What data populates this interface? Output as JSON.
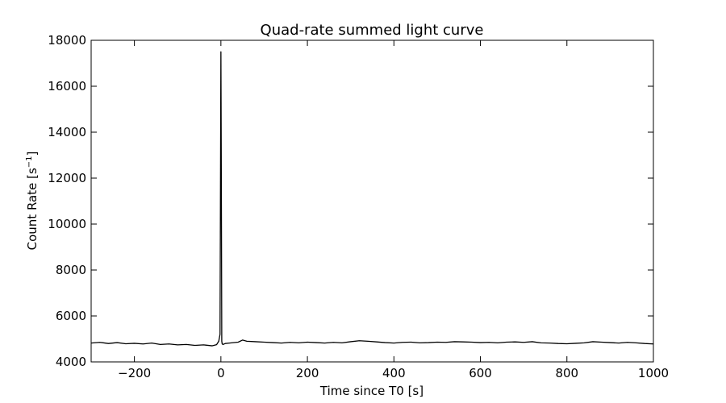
{
  "chart_data": {
    "type": "line",
    "title": "Quad-rate summed light curve",
    "xlabel": "Time since T0 [s]",
    "ylabel_main": "Count Rate [s",
    "ylabel_sup": "−1",
    "ylabel_end": "]",
    "xlim": [
      -300,
      1000
    ],
    "ylim": [
      4000,
      18000
    ],
    "x_ticks": [
      -200,
      0,
      200,
      400,
      600,
      800,
      1000
    ],
    "x_tick_labels": [
      "−200",
      "0",
      "200",
      "400",
      "600",
      "800",
      "1000"
    ],
    "y_ticks": [
      4000,
      6000,
      8000,
      10000,
      12000,
      14000,
      16000,
      18000
    ],
    "y_tick_labels": [
      "4000",
      "6000",
      "8000",
      "10000",
      "12000",
      "14000",
      "16000",
      "18000"
    ],
    "grid": false,
    "line_color": "#000000",
    "series": [
      {
        "x": [
          -300,
          -280,
          -260,
          -240,
          -220,
          -200,
          -180,
          -160,
          -140,
          -120,
          -100,
          -80,
          -60,
          -40,
          -20,
          -10,
          -5,
          -2,
          0,
          1,
          2,
          3,
          5,
          10,
          20,
          40,
          50,
          60,
          80,
          100,
          120,
          140,
          160,
          180,
          200,
          220,
          240,
          260,
          280,
          300,
          320,
          340,
          360,
          380,
          400,
          420,
          440,
          460,
          480,
          500,
          520,
          540,
          560,
          580,
          600,
          620,
          640,
          660,
          680,
          700,
          720,
          740,
          760,
          780,
          800,
          820,
          840,
          860,
          880,
          900,
          920,
          940,
          960,
          980,
          1000
        ],
        "y": [
          4820,
          4850,
          4800,
          4840,
          4790,
          4810,
          4780,
          4820,
          4760,
          4780,
          4740,
          4760,
          4720,
          4740,
          4700,
          4750,
          4900,
          5200,
          17500,
          12000,
          4900,
          4780,
          4760,
          4800,
          4820,
          4860,
          4950,
          4900,
          4880,
          4860,
          4840,
          4820,
          4850,
          4830,
          4860,
          4840,
          4820,
          4850,
          4830,
          4880,
          4920,
          4900,
          4870,
          4840,
          4820,
          4850,
          4860,
          4830,
          4840,
          4860,
          4850,
          4880,
          4870,
          4860,
          4840,
          4850,
          4830,
          4860,
          4870,
          4850,
          4880,
          4830,
          4820,
          4800,
          4790,
          4810,
          4830,
          4880,
          4860,
          4840,
          4820,
          4850,
          4830,
          4800,
          4780
        ]
      }
    ]
  }
}
